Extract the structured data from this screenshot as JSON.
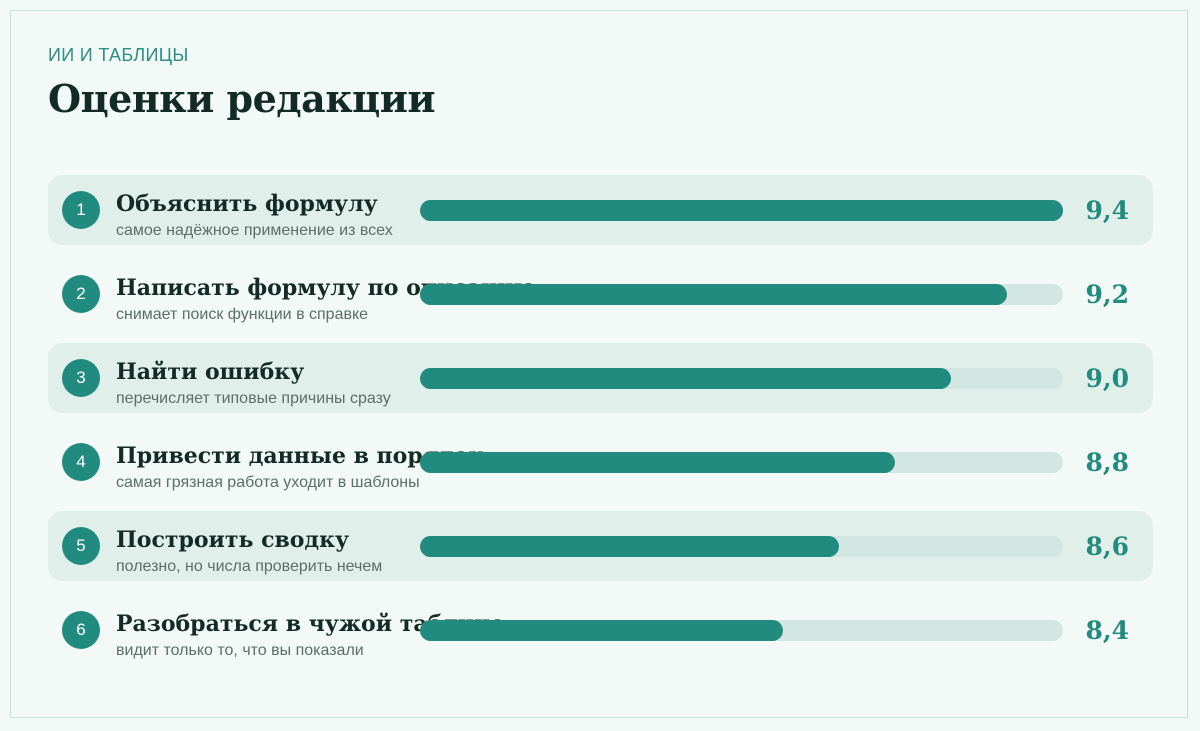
{
  "kicker": "ИИ И ТАБЛИЦЫ",
  "title": "Оценки редакции",
  "colors": {
    "accent": "#228b80",
    "track": "#d2e7e2",
    "row_shade": "#e1efeb"
  },
  "chart_data": {
    "type": "bar",
    "orientation": "horizontal",
    "xlim": [
      7.1,
      9.4
    ],
    "categories": [
      "Объяснить формулу",
      "Написать формулу по описанию",
      "Найти ошибку",
      "Привести данные в порядок",
      "Построить сводку",
      "Разобраться в чужой таблице"
    ],
    "values": [
      9.4,
      9.2,
      9.0,
      8.8,
      8.6,
      8.4
    ],
    "items": [
      {
        "rank": "1",
        "name": "Объяснить формулу",
        "note": "самое надёжное применение из всех",
        "score": "9,4",
        "value": 9.4
      },
      {
        "rank": "2",
        "name": "Написать формулу по описанию",
        "note": "снимает поиск функции в справке",
        "score": "9,2",
        "value": 9.2
      },
      {
        "rank": "3",
        "name": "Найти ошибку",
        "note": "перечисляет типовые причины сразу",
        "score": "9,0",
        "value": 9.0
      },
      {
        "rank": "4",
        "name": "Привести данные в порядок",
        "note": "самая грязная работа уходит в шаблоны",
        "score": "8,8",
        "value": 8.8
      },
      {
        "rank": "5",
        "name": "Построить сводку",
        "note": "полезно, но числа проверить нечем",
        "score": "8,6",
        "value": 8.6
      },
      {
        "rank": "6",
        "name": "Разобраться в чужой таблице",
        "note": "видит только то, что вы показали",
        "score": "8,4",
        "value": 8.4
      }
    ]
  }
}
